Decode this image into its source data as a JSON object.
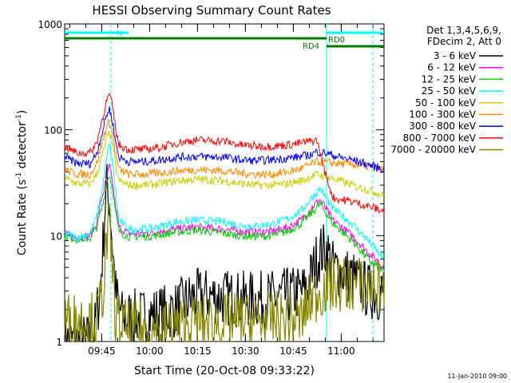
{
  "chart_data": {
    "type": "line",
    "title": "HESSI Observing Summary Count Rates",
    "xlabel": "Start Time (20-Oct-08 09:33:22)",
    "ylabel_main": "Count Rate (s",
    "ylabel_exp1": "-1",
    "ylabel_mid": " detector",
    "ylabel_exp2": "-1",
    "ylabel_end": ")",
    "yscale": "log",
    "ylim": [
      1,
      1000
    ],
    "xlim_minutes": [
      0,
      100
    ],
    "xticks": [
      {
        "label": "09:45",
        "t": 11.6
      },
      {
        "label": "10:00",
        "t": 26.6
      },
      {
        "label": "10:15",
        "t": 41.6
      },
      {
        "label": "10:30",
        "t": 56.6
      },
      {
        "label": "10:45",
        "t": 71.6
      },
      {
        "label": "11:00",
        "t": 86.6
      }
    ],
    "yticks": [
      {
        "label": "1",
        "v": 1
      },
      {
        "label": "10",
        "v": 10
      },
      {
        "label": "100",
        "v": 100
      },
      {
        "label": "1000",
        "v": 1000
      }
    ],
    "legend_header": [
      "Det 1,3,4,5,6,9,",
      "FDecim 2, Att 0"
    ],
    "series": [
      {
        "name": "3 - 6 keV",
        "color": "#000000",
        "points": [
          [
            0,
            1
          ],
          [
            4,
            1
          ],
          [
            9,
            1
          ],
          [
            10,
            1.8
          ],
          [
            11,
            2.8
          ],
          [
            12,
            8
          ],
          [
            13,
            30
          ],
          [
            14,
            22
          ],
          [
            15,
            8
          ],
          [
            16,
            2.8
          ],
          [
            18,
            1.7
          ],
          [
            25,
            1.7
          ],
          [
            35,
            2
          ],
          [
            40,
            2.6
          ],
          [
            46,
            2.7
          ],
          [
            55,
            2.5
          ],
          [
            62,
            2.5
          ],
          [
            66,
            2.6
          ],
          [
            70,
            2.7
          ],
          [
            75,
            3
          ],
          [
            77,
            4
          ],
          [
            78.5,
            5.5
          ],
          [
            80,
            7
          ],
          [
            82,
            7.5
          ],
          [
            84,
            5
          ],
          [
            90,
            4
          ],
          [
            95,
            3
          ],
          [
            100,
            2.8
          ]
        ]
      },
      {
        "name": "6 - 12 keV",
        "color": "#ff00ff",
        "points": [
          [
            0,
            10.2
          ],
          [
            4,
            9.5
          ],
          [
            8,
            10
          ],
          [
            10,
            13
          ],
          [
            11.5,
            22
          ],
          [
            13,
            33
          ],
          [
            14,
            45
          ],
          [
            15,
            32
          ],
          [
            16,
            18
          ],
          [
            17,
            12
          ],
          [
            20,
            10.5
          ],
          [
            25,
            10.5
          ],
          [
            30,
            11
          ],
          [
            35,
            11.5
          ],
          [
            41,
            12
          ],
          [
            50,
            11.5
          ],
          [
            55,
            11
          ],
          [
            60,
            10.8
          ],
          [
            65,
            11
          ],
          [
            70,
            12
          ],
          [
            74,
            14
          ],
          [
            77,
            18
          ],
          [
            80,
            22
          ],
          [
            84,
            14
          ],
          [
            90,
            10
          ],
          [
            95,
            7
          ],
          [
            100,
            5
          ]
        ]
      },
      {
        "name": "12 - 25 keV",
        "color": "#00cc00",
        "points": [
          [
            0,
            10
          ],
          [
            4,
            9.2
          ],
          [
            8,
            9.5
          ],
          [
            10,
            12
          ],
          [
            12,
            20
          ],
          [
            13,
            30
          ],
          [
            14,
            38
          ],
          [
            15,
            28
          ],
          [
            16,
            16
          ],
          [
            17,
            11
          ],
          [
            20,
            9.8
          ],
          [
            25,
            9.8
          ],
          [
            30,
            10.2
          ],
          [
            35,
            10.8
          ],
          [
            41,
            11.3
          ],
          [
            50,
            10.5
          ],
          [
            55,
            10
          ],
          [
            60,
            9.8
          ],
          [
            65,
            10
          ],
          [
            70,
            11
          ],
          [
            74,
            13
          ],
          [
            77,
            16
          ],
          [
            80,
            20
          ],
          [
            84,
            13
          ],
          [
            90,
            9
          ],
          [
            95,
            6
          ],
          [
            100,
            4.5
          ]
        ]
      },
      {
        "name": "25 - 50 keV",
        "color": "#00ffff",
        "points": [
          [
            0,
            10.5
          ],
          [
            4,
            9.5
          ],
          [
            8,
            10.5
          ],
          [
            10,
            15
          ],
          [
            12,
            30
          ],
          [
            13,
            50
          ],
          [
            14,
            72
          ],
          [
            15,
            50
          ],
          [
            16,
            25
          ],
          [
            17,
            14
          ],
          [
            20,
            11.5
          ],
          [
            25,
            11.5
          ],
          [
            30,
            12.2
          ],
          [
            35,
            13.5
          ],
          [
            41,
            14
          ],
          [
            50,
            13.5
          ],
          [
            55,
            12.5
          ],
          [
            60,
            12.3
          ],
          [
            65,
            13
          ],
          [
            70,
            14.5
          ],
          [
            74,
            17
          ],
          [
            77,
            22
          ],
          [
            80,
            28
          ],
          [
            84,
            18
          ],
          [
            90,
            13
          ],
          [
            95,
            9
          ],
          [
            100,
            6
          ]
        ]
      },
      {
        "name": "50 - 100 keV",
        "color": "#cccc00",
        "points": [
          [
            0,
            35
          ],
          [
            4,
            31
          ],
          [
            8,
            31
          ],
          [
            10,
            38
          ],
          [
            12,
            60
          ],
          [
            13,
            80
          ],
          [
            14,
            95
          ],
          [
            15,
            75
          ],
          [
            16,
            45
          ],
          [
            17,
            33
          ],
          [
            20,
            30
          ],
          [
            25,
            30
          ],
          [
            30,
            31
          ],
          [
            35,
            33
          ],
          [
            41,
            34
          ],
          [
            50,
            33
          ],
          [
            55,
            31
          ],
          [
            60,
            30
          ],
          [
            65,
            30
          ],
          [
            70,
            31
          ],
          [
            74,
            33
          ],
          [
            77,
            36
          ],
          [
            79,
            38
          ],
          [
            82,
            36
          ],
          [
            86,
            33
          ],
          [
            90,
            30
          ],
          [
            95,
            27
          ],
          [
            100,
            24
          ]
        ]
      },
      {
        "name": "100 - 300 keV",
        "color": "#ff8800",
        "points": [
          [
            0,
            42
          ],
          [
            4,
            38
          ],
          [
            8,
            38
          ],
          [
            10,
            48
          ],
          [
            12,
            80
          ],
          [
            13,
            105
          ],
          [
            14,
            120
          ],
          [
            15,
            95
          ],
          [
            16,
            58
          ],
          [
            17,
            42
          ],
          [
            20,
            38
          ],
          [
            25,
            38
          ],
          [
            30,
            39
          ],
          [
            35,
            41
          ],
          [
            41,
            42
          ],
          [
            50,
            41
          ],
          [
            55,
            39
          ],
          [
            60,
            38
          ],
          [
            65,
            38
          ],
          [
            70,
            40
          ],
          [
            74,
            43
          ],
          [
            77,
            47
          ],
          [
            79,
            50
          ],
          [
            82,
            49
          ],
          [
            86,
            48
          ],
          [
            90,
            47
          ],
          [
            95,
            45
          ],
          [
            100,
            42
          ]
        ]
      },
      {
        "name": "300 - 800 keV",
        "color": "#0000ff",
        "points": [
          [
            0,
            55
          ],
          [
            4,
            48
          ],
          [
            8,
            48
          ],
          [
            10,
            60
          ],
          [
            12,
            100
          ],
          [
            13,
            135
          ],
          [
            14,
            158
          ],
          [
            15,
            120
          ],
          [
            16,
            75
          ],
          [
            17,
            55
          ],
          [
            20,
            50
          ],
          [
            25,
            50
          ],
          [
            30,
            52
          ],
          [
            35,
            55
          ],
          [
            41,
            56
          ],
          [
            50,
            55
          ],
          [
            55,
            52
          ],
          [
            60,
            51
          ],
          [
            65,
            52
          ],
          [
            70,
            54
          ],
          [
            74,
            56
          ],
          [
            77,
            58
          ],
          [
            79,
            62
          ],
          [
            82,
            60
          ],
          [
            86,
            55
          ],
          [
            90,
            52
          ],
          [
            95,
            47
          ],
          [
            100,
            42
          ]
        ]
      },
      {
        "name": "800 - 7000 keV",
        "color": "#ff0000",
        "points": [
          [
            0,
            70
          ],
          [
            4,
            60
          ],
          [
            8,
            61
          ],
          [
            10,
            75
          ],
          [
            12,
            135
          ],
          [
            13,
            180
          ],
          [
            14,
            215
          ],
          [
            15,
            165
          ],
          [
            16,
            100
          ],
          [
            17,
            72
          ],
          [
            20,
            65
          ],
          [
            25,
            65
          ],
          [
            30,
            68
          ],
          [
            35,
            75
          ],
          [
            41,
            80
          ],
          [
            50,
            78
          ],
          [
            55,
            72
          ],
          [
            60,
            70
          ],
          [
            65,
            70
          ],
          [
            70,
            72
          ],
          [
            74,
            75
          ],
          [
            77,
            78
          ],
          [
            79,
            80
          ],
          [
            82,
            35
          ],
          [
            84,
            23
          ],
          [
            86,
            22
          ],
          [
            90,
            21
          ],
          [
            95,
            19
          ],
          [
            100,
            17
          ]
        ]
      },
      {
        "name": "7000 - 20000 keV",
        "color": "#888800",
        "points": [
          [
            0,
            1.6
          ],
          [
            4,
            1.6
          ],
          [
            8,
            1.6
          ],
          [
            10,
            1.6
          ],
          [
            12,
            3
          ],
          [
            13,
            8
          ],
          [
            14,
            12
          ],
          [
            15,
            5
          ],
          [
            16,
            1.6
          ],
          [
            20,
            1.3
          ],
          [
            30,
            1.3
          ],
          [
            40,
            1.5
          ],
          [
            50,
            1.5
          ],
          [
            55,
            1.6
          ],
          [
            60,
            1.5
          ],
          [
            65,
            1.6
          ],
          [
            70,
            1.6
          ],
          [
            74,
            1.6
          ],
          [
            77,
            2.5
          ],
          [
            80,
            3
          ],
          [
            84,
            3.5
          ],
          [
            90,
            3.5
          ],
          [
            95,
            3.3
          ],
          [
            100,
            3.3
          ]
        ]
      }
    ],
    "annotations": {
      "N": {
        "label": "N",
        "color": "#00ffff",
        "t_start": 0,
        "t_end": 20
      },
      "RD0": {
        "label": "RD0",
        "color": "#00ffff",
        "t_start": 82,
        "t_end": 100
      },
      "RD4": {
        "label": "RD4",
        "color": "#007700",
        "t_start": 82,
        "t_end": 100
      },
      "saa_bar": {
        "color": "#007700",
        "t_start": 0,
        "t_end": 82
      },
      "dashed_lines_t": [
        14.5,
        96.5
      ],
      "solid_line_t": 82
    },
    "footer_date": "11-Jan-2010 09:00"
  }
}
